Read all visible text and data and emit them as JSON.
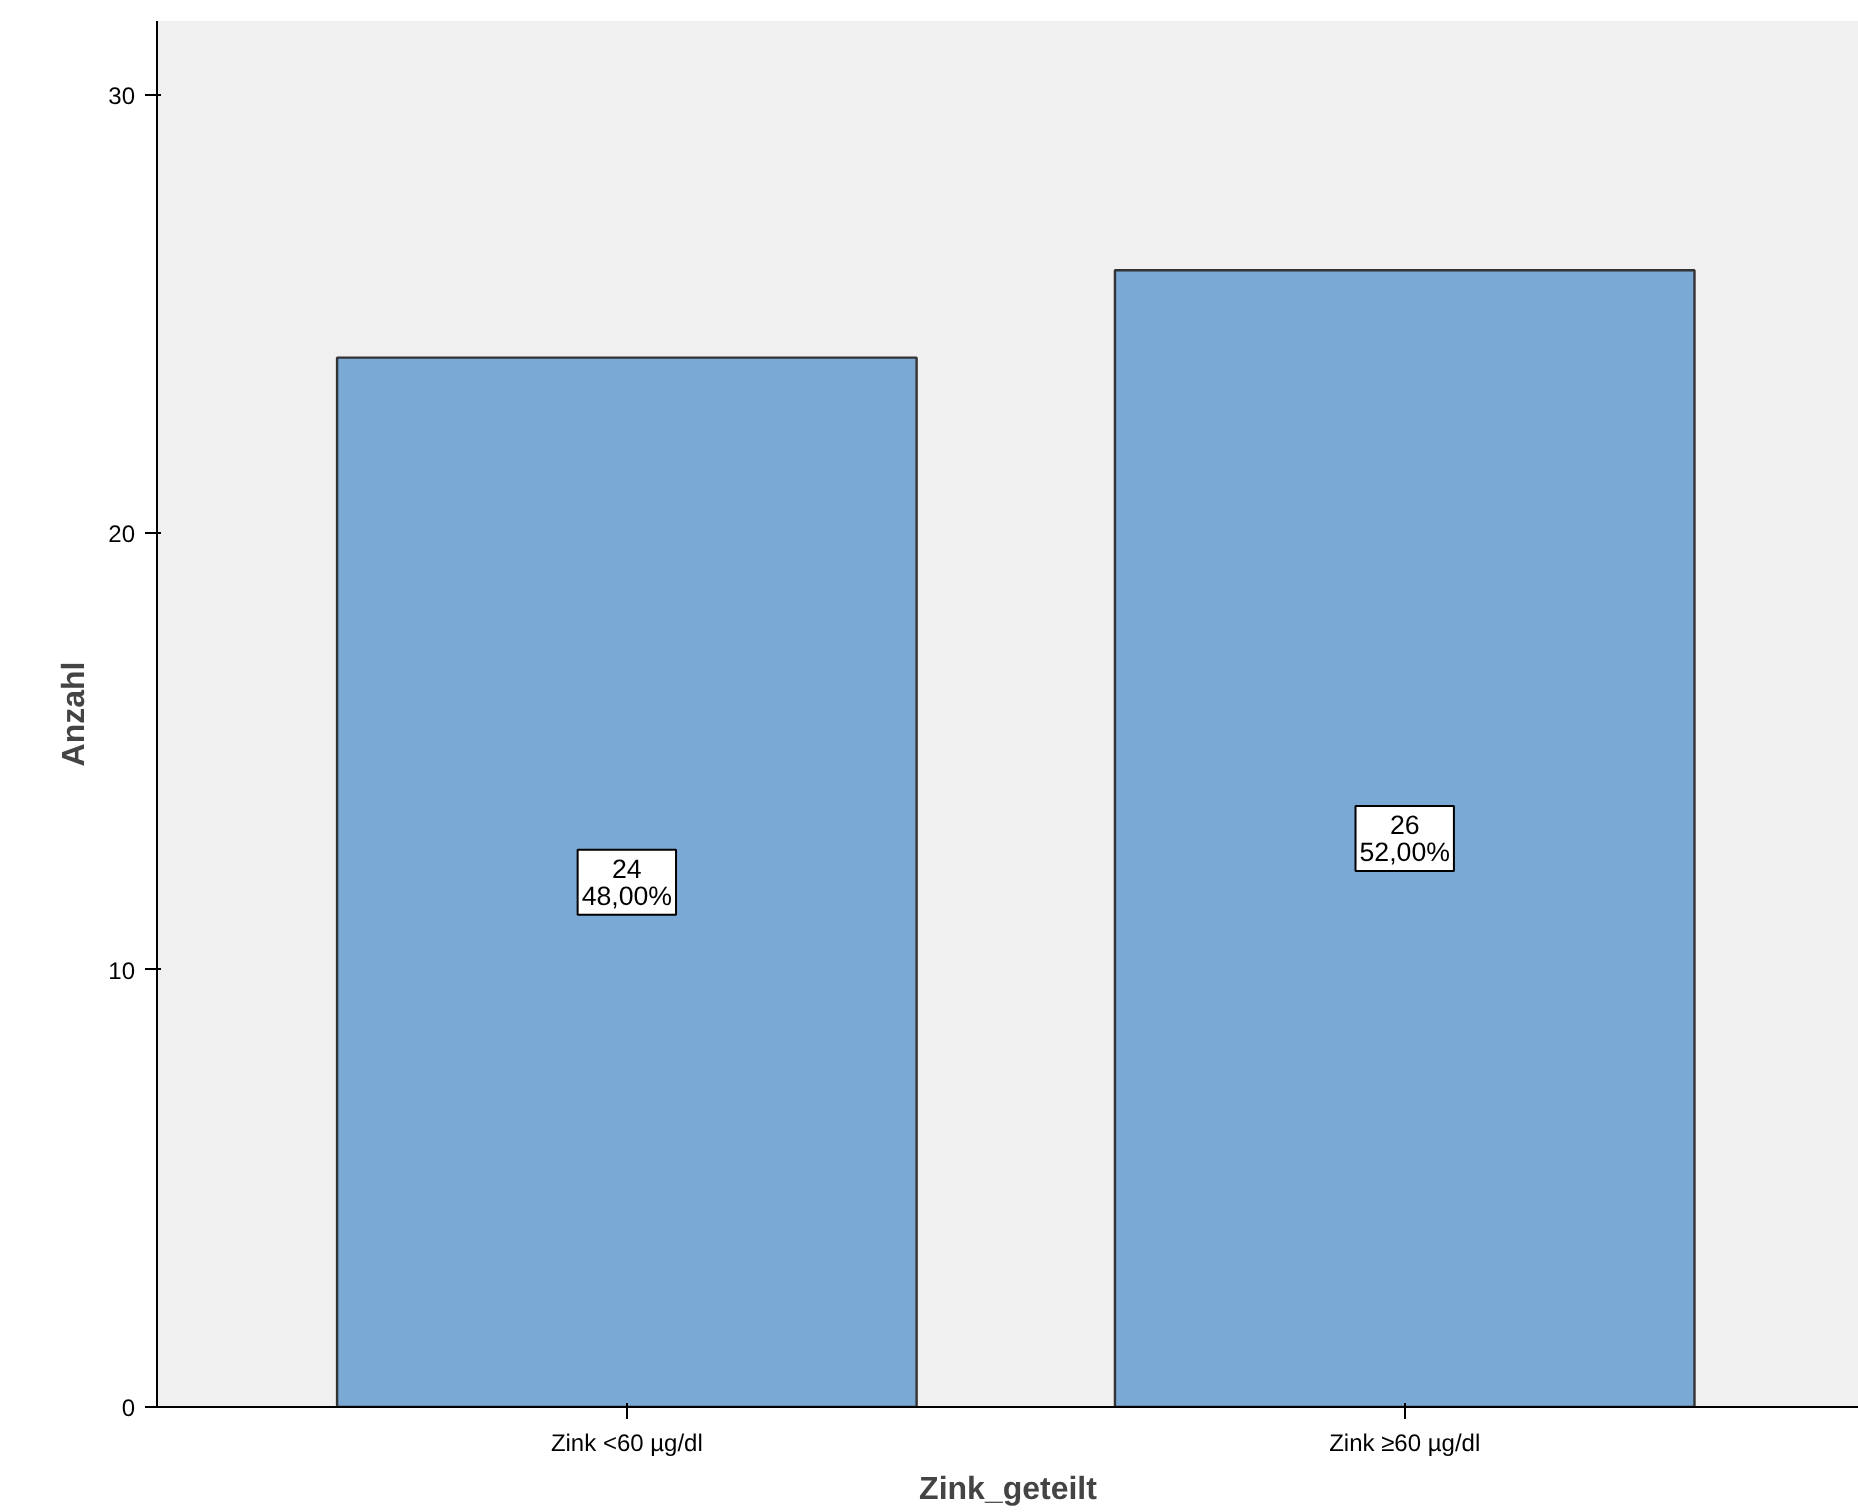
{
  "chart_data": {
    "type": "bar",
    "xlabel": "Zink_geteilt",
    "ylabel": "Anzahl",
    "categories": [
      "Zink <60 µg/dl",
      "Zink ≥60 µg/dl"
    ],
    "values": [
      24,
      26
    ],
    "color": "#7ba9d6",
    "value_labels": [
      "24\n48,00%",
      "26\n52,00%"
    ],
    "ylim": [
      0,
      31.7
    ],
    "yticks": [
      0,
      10,
      20,
      30
    ],
    "grid": false
  }
}
